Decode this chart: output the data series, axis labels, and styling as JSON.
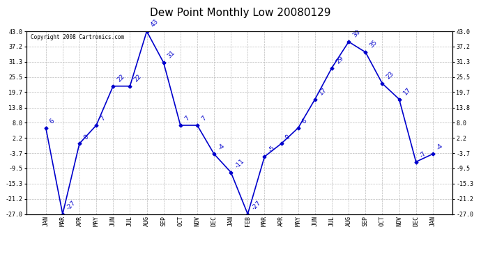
{
  "title": "Dew Point Monthly Low 20080129",
  "copyright": "Copyright 2008 Cartronics.com",
  "x_labels": [
    "JAN",
    "MAR",
    "APR",
    "MAY",
    "JUN",
    "JUL",
    "AUG",
    "SEP",
    "OCT",
    "NOV",
    "DEC",
    "JAN",
    "FEB",
    "MAR",
    "APR",
    "MAY",
    "JUN",
    "JUL",
    "AUG",
    "SEP",
    "OCT",
    "NOV",
    "DEC",
    "JAN"
  ],
  "y_values": [
    6,
    -27,
    0,
    7,
    22,
    22,
    43,
    31,
    7,
    7,
    -4,
    -11,
    -27,
    -5,
    0,
    6,
    17,
    29,
    39,
    35,
    23,
    17,
    -7,
    -4
  ],
  "yticks": [
    43.0,
    37.2,
    31.3,
    25.5,
    19.7,
    13.8,
    8.0,
    2.2,
    -3.7,
    -9.5,
    -15.3,
    -21.2,
    -27.0
  ],
  "ylim": [
    -27.0,
    43.0
  ],
  "line_color": "#0000cc",
  "marker": "D",
  "marker_size": 2.5,
  "bg_color": "#ffffff",
  "grid_color": "#bbbbbb",
  "title_fontsize": 11,
  "tick_fontsize": 6,
  "annotation_fontsize": 6.5,
  "copyright_fontsize": 5.5
}
